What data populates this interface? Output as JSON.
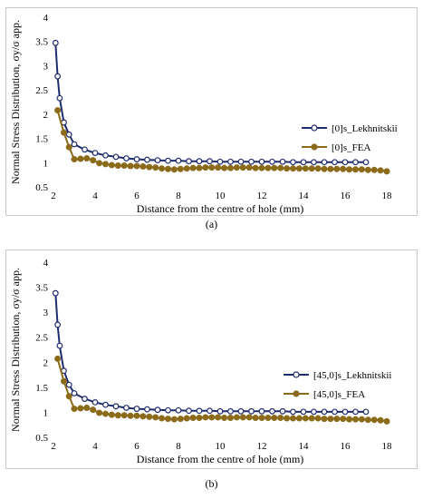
{
  "chart_data": [
    {
      "type": "line",
      "panel_label": "(a)",
      "xlabel": "Distance from the centre of hole (mm)",
      "ylabel": "Normal Stress Distribution, σy/σ app.",
      "xlim": [
        2,
        18
      ],
      "ylim": [
        0.5,
        4
      ],
      "xticks": [
        2,
        4,
        6,
        8,
        10,
        12,
        14,
        16,
        18
      ],
      "yticks": [
        0.5,
        1,
        1.5,
        2,
        2.5,
        3,
        3.5,
        4
      ],
      "xtick_labels": [
        "2",
        "4",
        "6",
        "8",
        "10",
        "12",
        "14",
        "16",
        "18"
      ],
      "ytick_labels": [
        "0.5",
        "1",
        "1.5",
        "2",
        "2.5",
        "3",
        "3.5",
        "4"
      ],
      "grid": false,
      "legend_position": "right",
      "series": [
        {
          "name": "[0]s_Lekhnitskii",
          "color": "#1f2d6e",
          "marker": "open-circle",
          "x": [
            2.1,
            2.2,
            2.3,
            2.5,
            2.75,
            3.0,
            3.5,
            4.0,
            4.5,
            5.0,
            5.5,
            6.0,
            6.5,
            7.0,
            7.5,
            8.0,
            8.5,
            9.0,
            9.5,
            10.0,
            10.5,
            11.0,
            11.5,
            12.0,
            12.5,
            13.0,
            13.5,
            14.0,
            14.5,
            15.0,
            15.5,
            16.0,
            16.5,
            17.0
          ],
          "y": [
            3.47,
            2.78,
            2.33,
            1.83,
            1.58,
            1.38,
            1.27,
            1.2,
            1.15,
            1.12,
            1.09,
            1.07,
            1.06,
            1.05,
            1.04,
            1.04,
            1.03,
            1.03,
            1.03,
            1.02,
            1.02,
            1.02,
            1.02,
            1.02,
            1.02,
            1.02,
            1.01,
            1.01,
            1.01,
            1.01,
            1.01,
            1.01,
            1.01,
            1.01
          ]
        },
        {
          "name": "[0]s_FEA",
          "color": "#8b6b1a",
          "marker": "filled-circle",
          "x": [
            2.2,
            2.5,
            2.75,
            3.0,
            3.3,
            3.6,
            3.9,
            4.2,
            4.5,
            4.8,
            5.1,
            5.4,
            5.7,
            6.0,
            6.3,
            6.6,
            6.9,
            7.2,
            7.5,
            7.8,
            8.1,
            8.4,
            8.7,
            9.0,
            9.3,
            9.6,
            9.9,
            10.2,
            10.5,
            10.8,
            11.1,
            11.4,
            11.7,
            12.0,
            12.3,
            12.6,
            12.9,
            13.2,
            13.5,
            13.8,
            14.1,
            14.4,
            14.7,
            15.0,
            15.3,
            15.6,
            15.9,
            16.2,
            16.5,
            16.8,
            17.1,
            17.4,
            17.7,
            18.0
          ],
          "y": [
            2.08,
            1.62,
            1.32,
            1.07,
            1.08,
            1.09,
            1.05,
            0.99,
            0.97,
            0.95,
            0.94,
            0.94,
            0.93,
            0.93,
            0.92,
            0.91,
            0.9,
            0.88,
            0.87,
            0.86,
            0.87,
            0.88,
            0.89,
            0.89,
            0.9,
            0.9,
            0.9,
            0.89,
            0.89,
            0.9,
            0.9,
            0.9,
            0.89,
            0.89,
            0.89,
            0.89,
            0.89,
            0.88,
            0.88,
            0.88,
            0.88,
            0.88,
            0.88,
            0.87,
            0.87,
            0.87,
            0.87,
            0.86,
            0.86,
            0.86,
            0.85,
            0.85,
            0.84,
            0.82
          ]
        }
      ]
    },
    {
      "type": "line",
      "panel_label": "(b)",
      "xlabel": "Distance from the centre of hole (mm)",
      "ylabel": "Normal Stress Distribution, σy/σ app.",
      "xlim": [
        2,
        18
      ],
      "ylim": [
        0.5,
        4
      ],
      "xticks": [
        2,
        4,
        6,
        8,
        10,
        12,
        14,
        16,
        18
      ],
      "yticks": [
        0.5,
        1,
        1.5,
        2,
        2.5,
        3,
        3.5,
        4
      ],
      "xtick_labels": [
        "2",
        "4",
        "6",
        "8",
        "10",
        "12",
        "14",
        "16",
        "18"
      ],
      "ytick_labels": [
        "0.5",
        "1",
        "1.5",
        "2",
        "2.5",
        "3",
        "3.5",
        "4"
      ],
      "grid": false,
      "legend_position": "right",
      "series": [
        {
          "name": "[45,0]s_Lekhnitskii",
          "color": "#1f2d6e",
          "marker": "open-circle",
          "x": [
            2.1,
            2.2,
            2.3,
            2.5,
            2.75,
            3.0,
            3.5,
            4.0,
            4.5,
            5.0,
            5.5,
            6.0,
            6.5,
            7.0,
            7.5,
            8.0,
            8.5,
            9.0,
            9.5,
            10.0,
            10.5,
            11.0,
            11.5,
            12.0,
            12.5,
            13.0,
            13.5,
            14.0,
            14.5,
            15.0,
            15.5,
            16.0,
            16.5,
            17.0
          ],
          "y": [
            3.38,
            2.75,
            2.33,
            1.83,
            1.55,
            1.38,
            1.27,
            1.2,
            1.15,
            1.12,
            1.09,
            1.07,
            1.06,
            1.05,
            1.04,
            1.04,
            1.03,
            1.03,
            1.03,
            1.02,
            1.02,
            1.02,
            1.02,
            1.02,
            1.02,
            1.02,
            1.01,
            1.01,
            1.01,
            1.01,
            1.01,
            1.01,
            1.01,
            1.01
          ]
        },
        {
          "name": "[45,0]s_FEA",
          "color": "#8b6b1a",
          "marker": "filled-circle",
          "x": [
            2.2,
            2.5,
            2.75,
            3.0,
            3.3,
            3.6,
            3.9,
            4.2,
            4.5,
            4.8,
            5.1,
            5.4,
            5.7,
            6.0,
            6.3,
            6.6,
            6.9,
            7.2,
            7.5,
            7.8,
            8.1,
            8.4,
            8.7,
            9.0,
            9.3,
            9.6,
            9.9,
            10.2,
            10.5,
            10.8,
            11.1,
            11.4,
            11.7,
            12.0,
            12.3,
            12.6,
            12.9,
            13.2,
            13.5,
            13.8,
            14.1,
            14.4,
            14.7,
            15.0,
            15.3,
            15.6,
            15.9,
            16.2,
            16.5,
            16.8,
            17.1,
            17.4,
            17.7,
            18.0
          ],
          "y": [
            2.07,
            1.62,
            1.32,
            1.07,
            1.08,
            1.09,
            1.05,
            0.99,
            0.97,
            0.95,
            0.94,
            0.94,
            0.93,
            0.93,
            0.92,
            0.91,
            0.9,
            0.88,
            0.87,
            0.86,
            0.87,
            0.88,
            0.89,
            0.89,
            0.9,
            0.9,
            0.9,
            0.89,
            0.89,
            0.9,
            0.9,
            0.9,
            0.89,
            0.89,
            0.89,
            0.89,
            0.89,
            0.88,
            0.88,
            0.88,
            0.88,
            0.88,
            0.88,
            0.87,
            0.87,
            0.87,
            0.87,
            0.86,
            0.86,
            0.86,
            0.85,
            0.85,
            0.84,
            0.82
          ]
        }
      ]
    }
  ]
}
